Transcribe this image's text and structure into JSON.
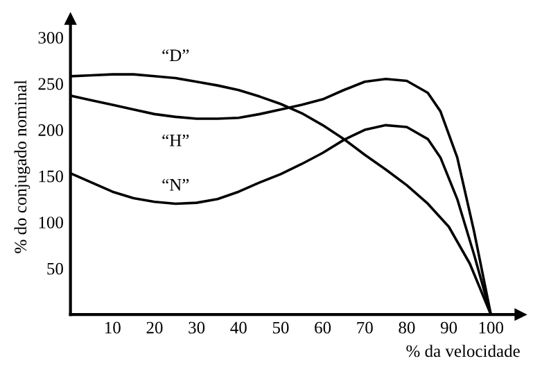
{
  "chart_data": {
    "type": "line",
    "xlabel": "% da velocidade",
    "ylabel": "% do conjugado nominal",
    "xlim": [
      0,
      107
    ],
    "ylim": [
      0,
      320
    ],
    "xticks": [
      10,
      20,
      30,
      40,
      50,
      60,
      70,
      80,
      90,
      100
    ],
    "yticks": [
      50,
      100,
      150,
      200,
      250,
      300
    ],
    "grid": false,
    "marker": "none",
    "line_style": "solid",
    "series": [
      {
        "name": "“D”",
        "color": "#000000",
        "x": [
          0,
          5,
          10,
          15,
          20,
          25,
          30,
          35,
          40,
          45,
          50,
          55,
          60,
          65,
          70,
          75,
          80,
          85,
          90,
          95,
          100
        ],
        "values": [
          258,
          259,
          260,
          260,
          258,
          256,
          252,
          248,
          243,
          236,
          228,
          218,
          205,
          190,
          173,
          157,
          140,
          120,
          95,
          55,
          0
        ]
      },
      {
        "name": "“H”",
        "color": "#000000",
        "x": [
          0,
          5,
          10,
          15,
          20,
          25,
          30,
          35,
          40,
          45,
          50,
          55,
          60,
          65,
          70,
          75,
          80,
          85,
          88,
          92,
          96,
          100
        ],
        "values": [
          237,
          232,
          227,
          222,
          217,
          214,
          212,
          212,
          213,
          217,
          222,
          227,
          233,
          243,
          252,
          255,
          253,
          240,
          220,
          170,
          90,
          0
        ]
      },
      {
        "name": "“N”",
        "color": "#000000",
        "x": [
          0,
          5,
          10,
          15,
          20,
          25,
          30,
          35,
          40,
          45,
          50,
          55,
          60,
          65,
          70,
          75,
          80,
          85,
          88,
          92,
          96,
          100
        ],
        "values": [
          153,
          143,
          133,
          126,
          122,
          120,
          121,
          125,
          133,
          143,
          152,
          163,
          175,
          189,
          200,
          205,
          203,
          190,
          170,
          125,
          65,
          0
        ]
      }
    ],
    "legend": false
  }
}
